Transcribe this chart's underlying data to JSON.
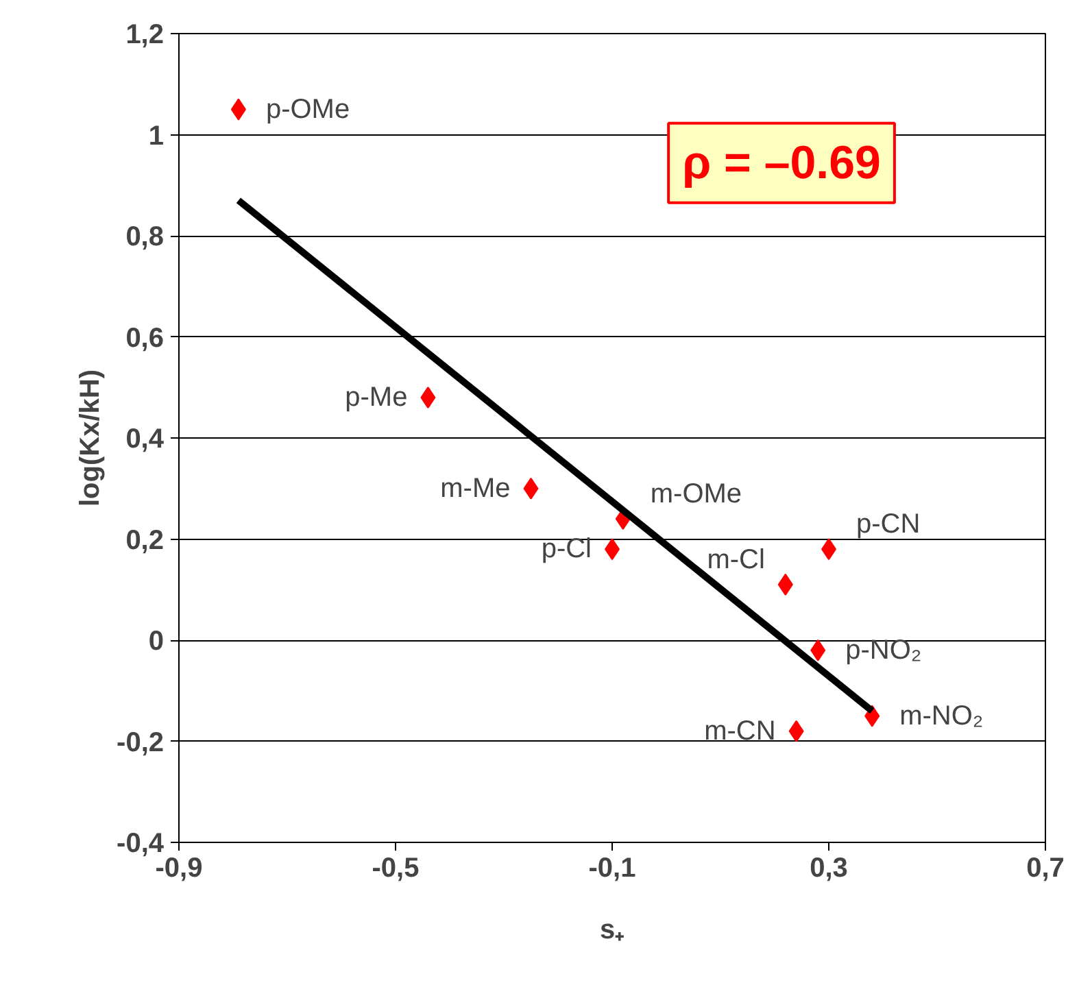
{
  "chart_data": {
    "type": "scatter",
    "xlabel": "s₊",
    "ylabel": "log(Kx/kH)",
    "xlim": [
      -0.9,
      0.7
    ],
    "xticks": [
      {
        "value": -0.9,
        "label": "-0,9"
      },
      {
        "value": -0.5,
        "label": "-0,5"
      },
      {
        "value": -0.1,
        "label": "-0,1"
      },
      {
        "value": 0.3,
        "label": "0,3"
      },
      {
        "value": 0.7,
        "label": "0,7"
      }
    ],
    "ylim": [
      -0.4,
      1.2
    ],
    "yticks": [
      {
        "value": -0.4,
        "label": "-0,4"
      },
      {
        "value": -0.2,
        "label": "-0,2"
      },
      {
        "value": 0,
        "label": "0"
      },
      {
        "value": 0.2,
        "label": "0,2"
      },
      {
        "value": 0.4,
        "label": "0,4"
      },
      {
        "value": 0.6,
        "label": "0,6"
      },
      {
        "value": 0.8,
        "label": "0,8"
      },
      {
        "value": 1,
        "label": "1"
      },
      {
        "value": 1.2,
        "label": "1,2"
      }
    ],
    "grid": "y",
    "series": [
      {
        "marker": "diamond",
        "color": "#ff0000",
        "x": [
          -0.79,
          -0.44,
          -0.25,
          -0.08,
          -0.1,
          0.22,
          0.3,
          0.28,
          0.24,
          0.38
        ],
        "values": [
          1.05,
          0.48,
          0.3,
          0.24,
          0.18,
          0.11,
          0.18,
          -0.02,
          -0.18,
          -0.15
        ]
      },
      {
        "type": "line",
        "color": "#000000",
        "x": [
          -0.79,
          0.38
        ],
        "values": [
          0.87,
          -0.14
        ]
      }
    ],
    "annotations": [
      {
        "text": "p-OMe",
        "x": -0.79,
        "y": 1.05
      },
      {
        "text": "p-Me",
        "x": -0.44,
        "y": 0.48
      },
      {
        "text": "m-Me",
        "x": -0.25,
        "y": 0.3
      },
      {
        "text": "m-OMe",
        "x": -0.08,
        "y": 0.24
      },
      {
        "text": "p-Cl",
        "x": -0.1,
        "y": 0.18
      },
      {
        "text": "m-Cl",
        "x": 0.22,
        "y": 0.11
      },
      {
        "text": "p-CN",
        "x": 0.3,
        "y": 0.18
      },
      {
        "text": "p-NO₂",
        "x": 0.28,
        "y": -0.02
      },
      {
        "text": "m-CN",
        "x": 0.24,
        "y": -0.18
      },
      {
        "text": "m-NO₂",
        "x": 0.38,
        "y": -0.15
      },
      "ρ = –0.69"
    ]
  }
}
